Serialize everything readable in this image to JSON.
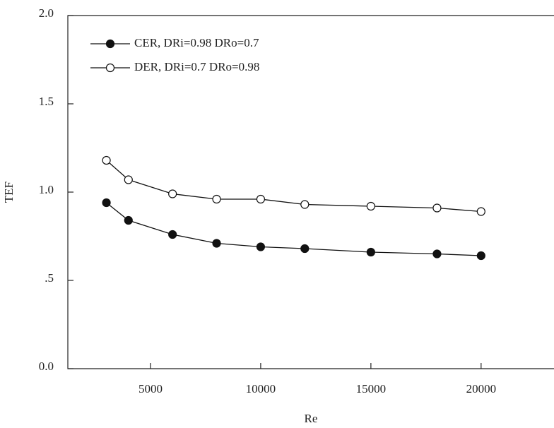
{
  "chart_data": {
    "type": "line",
    "x_label": "Re",
    "y_label": "TEF",
    "x": [
      3000,
      4000,
      6000,
      8000,
      10000,
      12000,
      15000,
      18000,
      20000
    ],
    "series": [
      {
        "name": "CER, DRi=0.98  DRo=0.7",
        "color": "#111111",
        "marker": "filled",
        "values": [
          0.94,
          0.84,
          0.76,
          0.71,
          0.69,
          0.68,
          0.66,
          0.65,
          0.64
        ]
      },
      {
        "name": "DER, DRi=0.7  DRo=0.98",
        "color": "#111111",
        "marker": "open",
        "values": [
          1.18,
          1.07,
          0.99,
          0.96,
          0.96,
          0.93,
          0.92,
          0.91,
          0.89
        ]
      }
    ],
    "xlim": [
      1250,
      23500
    ],
    "ylim": [
      0,
      2
    ],
    "xticks": [
      5000,
      10000,
      15000,
      20000
    ],
    "yticks": [
      {
        "value": 0,
        "label": "0.0"
      },
      {
        "value": 0.5,
        "label": ".5"
      },
      {
        "value": 1,
        "label": "1.0"
      },
      {
        "value": 1.5,
        "label": "1.5"
      },
      {
        "value": 2,
        "label": "2.0"
      }
    ],
    "legend": "upper-left"
  }
}
